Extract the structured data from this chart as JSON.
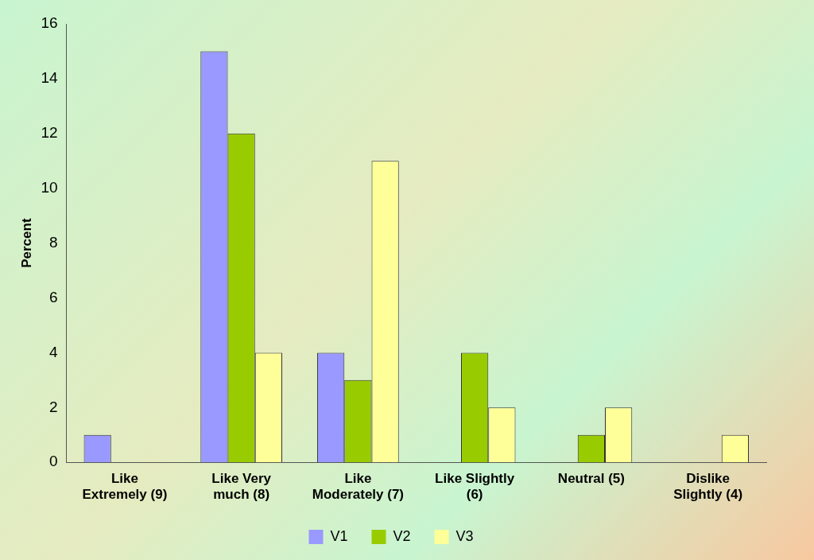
{
  "chart_data": {
    "type": "bar",
    "ylabel": "Percent",
    "categories": [
      "Like Extremely (9)",
      "Like Very much (8)",
      "Like Moderately (7)",
      "Like Slightly (6)",
      "Neutral (5)",
      "Dislike Slightly (4)"
    ],
    "series": [
      {
        "name": "V1",
        "color": "#9999ff",
        "values": [
          1,
          15,
          4,
          0,
          0,
          0
        ]
      },
      {
        "name": "V2",
        "color": "#99cc00",
        "values": [
          0,
          12,
          3,
          4,
          1,
          0
        ]
      },
      {
        "name": "V3",
        "color": "#ffff99",
        "values": [
          0,
          4,
          11,
          2,
          2,
          1
        ]
      }
    ],
    "ylim": [
      0,
      16
    ],
    "yticks": [
      0,
      2,
      4,
      6,
      8,
      10,
      12,
      14,
      16
    ],
    "grid": false,
    "legend": "bottom"
  }
}
